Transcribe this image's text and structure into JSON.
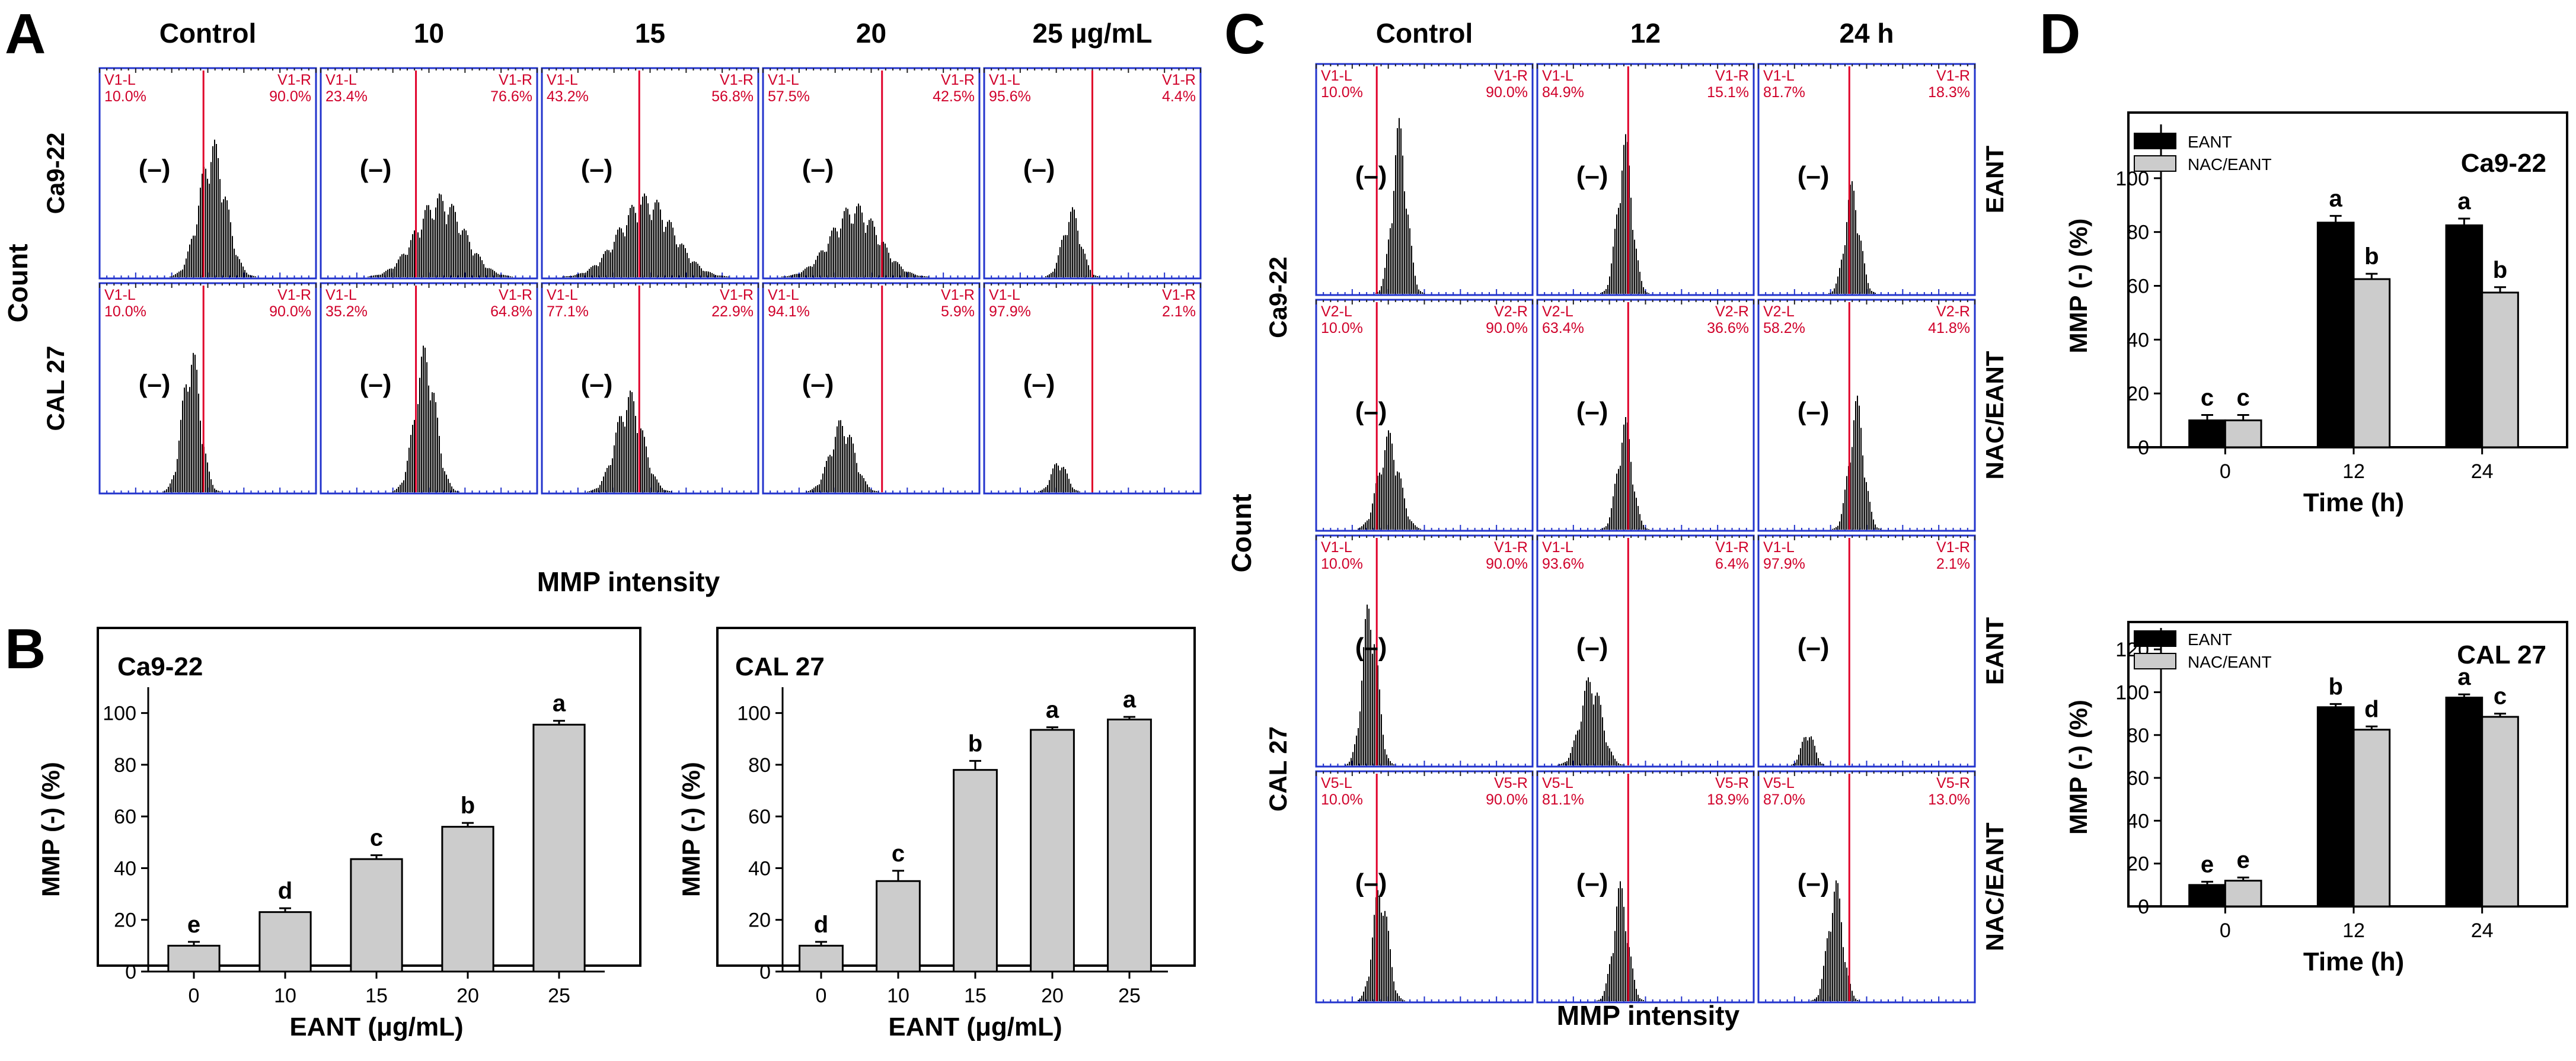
{
  "panel_letters": [
    "A",
    "B",
    "C",
    "D"
  ],
  "chart_data": [
    {
      "id": "A",
      "type": "histogram-grid",
      "columns": [
        "Control",
        "10",
        "15",
        "20",
        "25 μg/mL"
      ],
      "rows": [
        {
          "name": "Ca9-22",
          "gates": [
            {
              "left": "V1-L",
              "left_pct": "10.0%",
              "right": "V1-R",
              "right_pct": "90.0%"
            },
            {
              "left": "V1-L",
              "left_pct": "23.4%",
              "right": "V1-R",
              "right_pct": "76.6%"
            },
            {
              "left": "V1-L",
              "left_pct": "43.2%",
              "right": "V1-R",
              "right_pct": "56.8%"
            },
            {
              "left": "V1-L",
              "left_pct": "57.5%",
              "right": "V1-R",
              "right_pct": "42.5%"
            },
            {
              "left": "V1-L",
              "left_pct": "95.6%",
              "right": "V1-R",
              "right_pct": "4.4%"
            }
          ]
        },
        {
          "name": "CAL 27",
          "gates": [
            {
              "left": "V1-L",
              "left_pct": "10.0%",
              "right": "V1-R",
              "right_pct": "90.0%"
            },
            {
              "left": "V1-L",
              "left_pct": "35.2%",
              "right": "V1-R",
              "right_pct": "64.8%"
            },
            {
              "left": "V1-L",
              "left_pct": "77.1%",
              "right": "V1-R",
              "right_pct": "22.9%"
            },
            {
              "left": "V1-L",
              "left_pct": "94.1%",
              "right": "V1-R",
              "right_pct": "5.9%"
            },
            {
              "left": "V1-L",
              "left_pct": "97.9%",
              "right": "V1-R",
              "right_pct": "2.1%"
            }
          ]
        }
      ],
      "ylabel": "Count",
      "xlabel": "MMP intensity",
      "neg_label": "(–)"
    },
    {
      "id": "B1",
      "type": "bar",
      "title": "Ca9-22",
      "categories": [
        "0",
        "10",
        "15",
        "20",
        "25"
      ],
      "values": [
        10,
        23,
        43.5,
        56,
        95.5
      ],
      "errors": [
        1.5,
        1.5,
        1.5,
        1.5,
        1.5
      ],
      "letters": [
        "e",
        "d",
        "c",
        "b",
        "a"
      ],
      "ylim": [
        0,
        110
      ],
      "yticks": [
        "0",
        "20",
        "40",
        "60",
        "80",
        "100"
      ],
      "ylabel": "MMP (-) (%)",
      "xlabel": "EANT (μg/mL)"
    },
    {
      "id": "B2",
      "type": "bar",
      "title": "CAL 27",
      "categories": [
        "0",
        "10",
        "15",
        "20",
        "25"
      ],
      "values": [
        10,
        35,
        78,
        93.5,
        97.5
      ],
      "errors": [
        1.5,
        4,
        3.5,
        1,
        1
      ],
      "letters": [
        "d",
        "c",
        "b",
        "a",
        "a"
      ],
      "ylim": [
        0,
        110
      ],
      "yticks": [
        "0",
        "20",
        "40",
        "60",
        "80",
        "100"
      ],
      "ylabel": "MMP (-) (%)",
      "xlabel": "EANT (μg/mL)"
    },
    {
      "id": "C",
      "type": "histogram-grid",
      "columns": [
        "Control",
        "12",
        "24 h"
      ],
      "rows": [
        {
          "name": "EANT",
          "gates": [
            {
              "left": "V1-L",
              "left_pct": "10.0%",
              "right": "V1-R",
              "right_pct": "90.0%"
            },
            {
              "left": "V1-L",
              "left_pct": "84.9%",
              "right": "V1-R",
              "right_pct": "15.1%"
            },
            {
              "left": "V1-L",
              "left_pct": "81.7%",
              "right": "V1-R",
              "right_pct": "18.3%"
            }
          ]
        },
        {
          "name": "NAC/EANT",
          "gates": [
            {
              "left": "V2-L",
              "left_pct": "10.0%",
              "right": "V2-R",
              "right_pct": "90.0%"
            },
            {
              "left": "V2-L",
              "left_pct": "63.4%",
              "right": "V2-R",
              "right_pct": "36.6%"
            },
            {
              "left": "V2-L",
              "left_pct": "58.2%",
              "right": "V2-R",
              "right_pct": "41.8%"
            }
          ]
        },
        {
          "name": "EANT",
          "gates": [
            {
              "left": "V1-L",
              "left_pct": "10.0%",
              "right": "V1-R",
              "right_pct": "90.0%"
            },
            {
              "left": "V1-L",
              "left_pct": "93.6%",
              "right": "V1-R",
              "right_pct": "6.4%"
            },
            {
              "left": "V1-L",
              "left_pct": "97.9%",
              "right": "V1-R",
              "right_pct": "2.1%"
            }
          ]
        },
        {
          "name": "NAC/EANT",
          "gates": [
            {
              "left": "V5-L",
              "left_pct": "10.0%",
              "right": "V5-R",
              "right_pct": "90.0%"
            },
            {
              "left": "V5-L",
              "left_pct": "81.1%",
              "right": "V5-R",
              "right_pct": "18.9%"
            },
            {
              "left": "V5-L",
              "left_pct": "87.0%",
              "right": "V5-R",
              "right_pct": "13.0%"
            }
          ]
        }
      ],
      "cell_lines": [
        "Ca9-22",
        "CAL 27"
      ],
      "ylabel": "Count",
      "xlabel": "MMP intensity",
      "neg_label": "(–)"
    },
    {
      "id": "D1",
      "type": "bar",
      "title": "Ca9-22",
      "categories": [
        "0",
        "12",
        "24"
      ],
      "series": [
        {
          "name": "EANT",
          "values": [
            10,
            83.5,
            82.5
          ],
          "errors": [
            2,
            2.5,
            2.5
          ],
          "letters": [
            "c",
            "a",
            "a"
          ],
          "color": "#000000"
        },
        {
          "name": "NAC/EANT",
          "values": [
            10,
            62.5,
            57.5
          ],
          "errors": [
            2,
            2,
            2
          ],
          "letters": [
            "c",
            "b",
            "b"
          ],
          "color": "#cccccc"
        }
      ],
      "ylim": [
        0,
        120
      ],
      "yticks": [
        "0",
        "20",
        "40",
        "60",
        "80",
        "100"
      ],
      "ylabel": "MMP (-) (%)",
      "xlabel": "Time (h)"
    },
    {
      "id": "D2",
      "type": "bar",
      "title": "CAL 27",
      "categories": [
        "0",
        "12",
        "24"
      ],
      "series": [
        {
          "name": "EANT",
          "values": [
            10,
            93,
            97.5
          ],
          "errors": [
            1.5,
            1.5,
            1.5
          ],
          "letters": [
            "e",
            "b",
            "a"
          ],
          "color": "#000000"
        },
        {
          "name": "NAC/EANT",
          "values": [
            12,
            82.5,
            88.5
          ],
          "errors": [
            1.5,
            1.5,
            1.5
          ],
          "letters": [
            "e",
            "d",
            "c"
          ],
          "color": "#cccccc"
        }
      ],
      "ylim": [
        0,
        130
      ],
      "yticks": [
        "0",
        "20",
        "40",
        "60",
        "80",
        "100",
        "120"
      ],
      "ylabel": "MMP (-) (%)",
      "xlabel": "Time (h)"
    }
  ]
}
